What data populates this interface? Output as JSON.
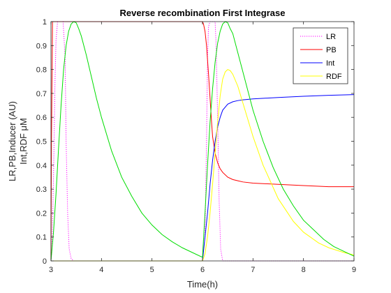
{
  "chart_data": {
    "type": "line",
    "title": "Reverse recombination First Integrase",
    "xlabel": "Time(h)",
    "ylabel_lines": [
      "LR,PB,Inducer (AU)",
      "Int,RDF μM"
    ],
    "xlim": [
      3,
      9
    ],
    "ylim": [
      0,
      1
    ],
    "xticks": [
      3,
      4,
      5,
      6,
      7,
      8,
      9
    ],
    "yticks": [
      0,
      0.1,
      0.2,
      0.3,
      0.4,
      0.5,
      0.6,
      0.7,
      0.8,
      0.9,
      1
    ],
    "yticklabels": [
      "0",
      "0.1",
      "0.2",
      "0.3",
      "0.4",
      "0.5",
      "0.6",
      "0.7",
      "0.8",
      "0.9",
      "1"
    ],
    "grid": false,
    "box": true,
    "legend": {
      "position": "top-right",
      "entries": [
        "LR",
        "PB",
        "Int",
        "RDF"
      ]
    },
    "series": [
      {
        "name": "LR",
        "color": "#ff00ff",
        "dash": "dotted",
        "x": [
          3.0,
          3.02,
          3.05,
          3.08,
          3.1,
          3.13,
          3.18,
          3.24,
          3.28,
          3.3,
          3.33,
          3.36,
          3.4,
          3.45,
          6.0,
          6.05,
          6.08,
          6.1,
          6.12,
          6.15,
          6.2,
          6.25,
          6.27,
          6.3,
          6.33,
          6.36,
          6.4,
          9.0
        ],
        "y": [
          0.0,
          0.05,
          0.35,
          0.75,
          0.92,
          1.0,
          1.0,
          1.0,
          0.85,
          0.5,
          0.2,
          0.05,
          0.01,
          0.0,
          0.0,
          0.1,
          0.5,
          0.85,
          0.98,
          1.0,
          1.0,
          1.0,
          0.9,
          0.6,
          0.25,
          0.05,
          0.0,
          0.0
        ]
      },
      {
        "name": "PB",
        "color": "#ff0000",
        "dash": "solid",
        "x": [
          3.0,
          3.01,
          3.03,
          6.0,
          6.02,
          6.05,
          6.08,
          6.1,
          6.12,
          6.15,
          6.18,
          6.2,
          6.25,
          6.3,
          6.35,
          6.4,
          6.5,
          6.6,
          6.7,
          6.8,
          7.0,
          7.5,
          8.0,
          8.5,
          8.8,
          9.0
        ],
        "y": [
          0.0,
          0.5,
          1.0,
          1.0,
          0.99,
          0.96,
          0.9,
          0.84,
          0.78,
          0.68,
          0.58,
          0.52,
          0.45,
          0.41,
          0.385,
          0.37,
          0.35,
          0.34,
          0.335,
          0.33,
          0.325,
          0.32,
          0.315,
          0.31,
          0.31,
          0.31
        ]
      },
      {
        "name": "Int",
        "color": "#0000ff",
        "dash": "solid",
        "x": [
          3.0,
          6.0,
          6.05,
          6.1,
          6.15,
          6.2,
          6.25,
          6.3,
          6.35,
          6.4,
          6.5,
          6.6,
          6.7,
          6.8,
          7.0,
          7.5,
          8.0,
          8.5,
          9.0
        ],
        "y": [
          0.0,
          0.0,
          0.1,
          0.2,
          0.32,
          0.42,
          0.5,
          0.56,
          0.6,
          0.63,
          0.655,
          0.665,
          0.67,
          0.673,
          0.677,
          0.683,
          0.688,
          0.692,
          0.695
        ]
      },
      {
        "name": "RDF",
        "color": "#ffff00",
        "dash": "solid",
        "x": [
          3.0,
          6.0,
          6.05,
          6.1,
          6.15,
          6.2,
          6.25,
          6.3,
          6.35,
          6.4,
          6.45,
          6.5,
          6.55,
          6.6,
          6.7,
          6.8,
          7.0,
          7.2,
          7.5,
          7.8,
          8.0,
          8.3,
          8.5,
          8.8,
          9.0
        ],
        "y": [
          0.0,
          0.0,
          0.03,
          0.1,
          0.2,
          0.32,
          0.45,
          0.58,
          0.69,
          0.76,
          0.79,
          0.8,
          0.795,
          0.78,
          0.73,
          0.66,
          0.52,
          0.4,
          0.26,
          0.165,
          0.12,
          0.075,
          0.055,
          0.035,
          0.025
        ]
      },
      {
        "name": "",
        "color": "#00dd00",
        "dash": "solid",
        "x": [
          3.0,
          3.05,
          3.1,
          3.15,
          3.2,
          3.25,
          3.3,
          3.35,
          3.4,
          3.45,
          3.5,
          3.55,
          3.6,
          3.7,
          3.8,
          3.9,
          4.0,
          4.2,
          4.4,
          4.6,
          4.8,
          5.0,
          5.2,
          5.4,
          5.6,
          5.8,
          6.0,
          6.05,
          6.1,
          6.15,
          6.2,
          6.25,
          6.3,
          6.35,
          6.4,
          6.45,
          6.5,
          6.55,
          6.6,
          6.7,
          6.8,
          6.9,
          7.0,
          7.2,
          7.4,
          7.6,
          7.8,
          8.0,
          8.2,
          8.4,
          8.6,
          8.8,
          9.0
        ],
        "y": [
          0.0,
          0.12,
          0.28,
          0.47,
          0.65,
          0.8,
          0.9,
          0.96,
          0.99,
          1.0,
          0.995,
          0.97,
          0.94,
          0.86,
          0.77,
          0.68,
          0.6,
          0.46,
          0.35,
          0.27,
          0.2,
          0.15,
          0.11,
          0.08,
          0.055,
          0.035,
          0.015,
          0.2,
          0.4,
          0.58,
          0.72,
          0.83,
          0.91,
          0.96,
          0.99,
          1.0,
          0.995,
          0.97,
          0.95,
          0.87,
          0.79,
          0.71,
          0.63,
          0.5,
          0.39,
          0.3,
          0.23,
          0.17,
          0.13,
          0.09,
          0.06,
          0.04,
          0.02
        ]
      }
    ]
  }
}
